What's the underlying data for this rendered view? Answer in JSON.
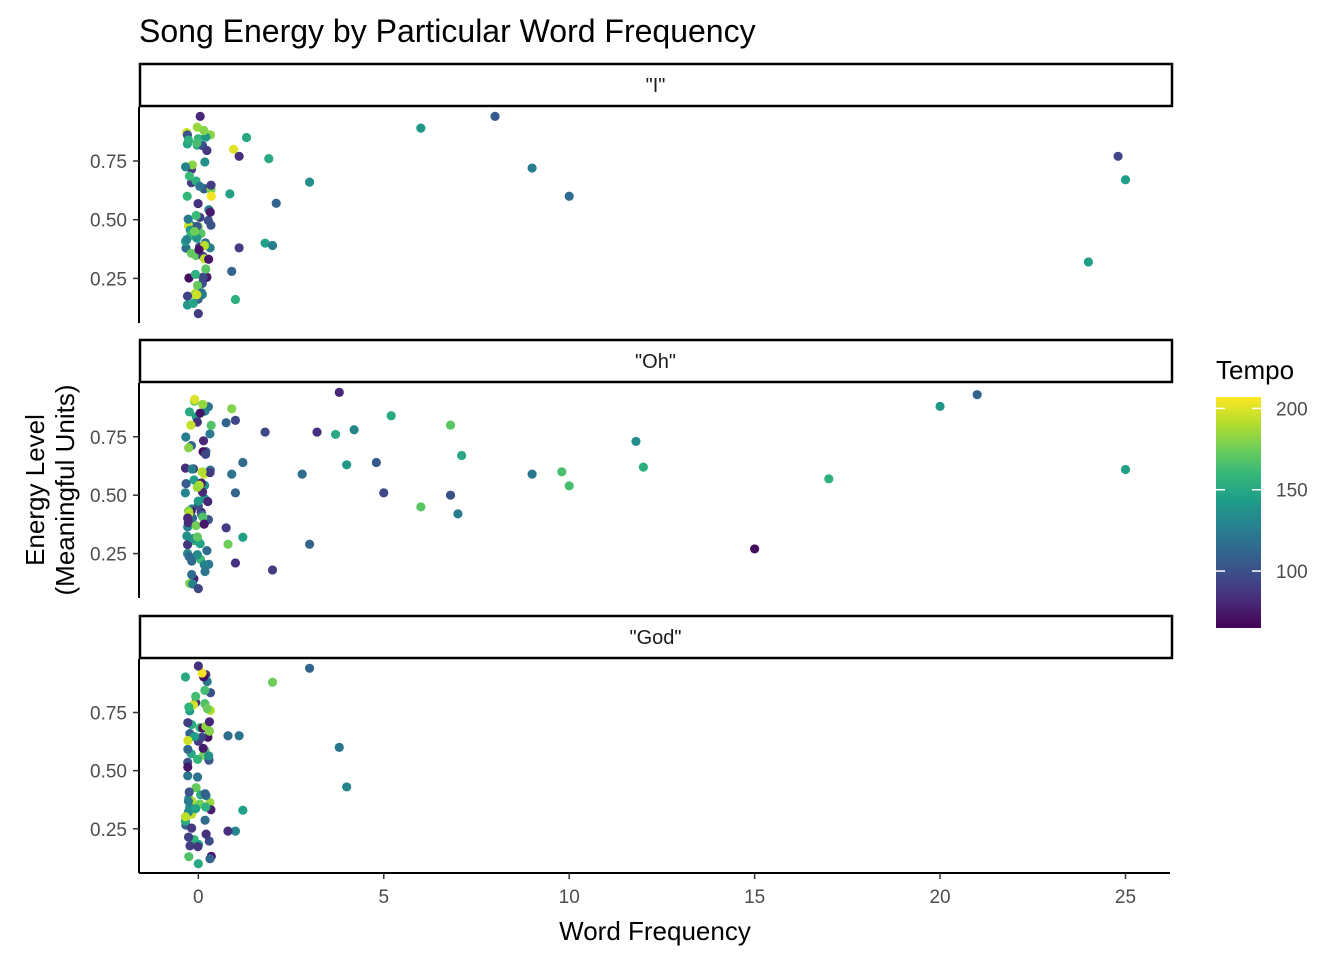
{
  "chart_data": {
    "type": "scatter",
    "title": "Song Energy by Particular Word Frequency",
    "xlabel": "Word Frequency",
    "ylabel_line1": "Energy Level",
    "ylabel_line2": "(Meaningful Units)",
    "xlim": [
      -1.6,
      26.2
    ],
    "ylim": [
      0.06,
      0.98
    ],
    "x_ticks": [
      0,
      5,
      10,
      15,
      20,
      25
    ],
    "x_tick_labels": [
      "0",
      "5",
      "10",
      "15",
      "20",
      "25"
    ],
    "y_ticks": [
      0.25,
      0.5,
      0.75
    ],
    "y_tick_labels": [
      "0.25",
      "0.50",
      "0.75"
    ],
    "grid": false,
    "legend": {
      "title": "Tempo",
      "position": "right",
      "range": [
        65,
        207
      ],
      "ticks": [
        100,
        150,
        200
      ],
      "tick_labels": [
        "100",
        "150",
        "200"
      ],
      "colors": [
        "#440154",
        "#482878",
        "#3e4a89",
        "#31688e",
        "#26828e",
        "#1f9e89",
        "#35b779",
        "#6ece58",
        "#b5de2b",
        "#fde725"
      ]
    },
    "panels": [
      {
        "label": "\"I\"",
        "points": [
          {
            "x": 6,
            "y": 0.89,
            "tempo": 140
          },
          {
            "x": 8,
            "y": 0.94,
            "tempo": 105
          },
          {
            "x": 9,
            "y": 0.72,
            "tempo": 125
          },
          {
            "x": 10,
            "y": 0.6,
            "tempo": 115
          },
          {
            "x": 24.8,
            "y": 0.77,
            "tempo": 95
          },
          {
            "x": 25,
            "y": 0.67,
            "tempo": 145
          },
          {
            "x": 24,
            "y": 0.32,
            "tempo": 145
          },
          {
            "x": 3,
            "y": 0.66,
            "tempo": 135
          },
          {
            "x": 2.1,
            "y": 0.57,
            "tempo": 110
          },
          {
            "x": 1.9,
            "y": 0.76,
            "tempo": 150
          },
          {
            "x": 1.3,
            "y": 0.85,
            "tempo": 150
          },
          {
            "x": 0.95,
            "y": 0.8,
            "tempo": 200
          },
          {
            "x": 1.1,
            "y": 0.77,
            "tempo": 85
          },
          {
            "x": 0.85,
            "y": 0.61,
            "tempo": 145
          },
          {
            "x": 1.1,
            "y": 0.38,
            "tempo": 90
          },
          {
            "x": 1.8,
            "y": 0.4,
            "tempo": 145
          },
          {
            "x": 2,
            "y": 0.39,
            "tempo": 125
          },
          {
            "x": 0.9,
            "y": 0.28,
            "tempo": 110
          },
          {
            "x": 1,
            "y": 0.16,
            "tempo": 155
          },
          {
            "x": 0.35,
            "y": 0.6,
            "tempo": 205
          },
          {
            "x": 0.15,
            "y": 0.88,
            "tempo": 180
          },
          {
            "x": 0.05,
            "y": 0.94,
            "tempo": 80
          },
          {
            "x": 0.0,
            "y": 0.1,
            "tempo": 90
          },
          {
            "x": 0.2,
            "y": 0.29,
            "tempo": 170
          },
          {
            "x": -0.1,
            "y": 0.45,
            "tempo": 175
          },
          {
            "x": -0.3,
            "y": 0.6,
            "tempo": 160
          }
        ]
      },
      {
        "label": "\"Oh\"",
        "points": [
          {
            "x": 3.8,
            "y": 0.94,
            "tempo": 80
          },
          {
            "x": 21,
            "y": 0.93,
            "tempo": 110
          },
          {
            "x": 20,
            "y": 0.88,
            "tempo": 140
          },
          {
            "x": 5.2,
            "y": 0.84,
            "tempo": 150
          },
          {
            "x": 6.8,
            "y": 0.8,
            "tempo": 170
          },
          {
            "x": 4.2,
            "y": 0.78,
            "tempo": 130
          },
          {
            "x": 3.7,
            "y": 0.76,
            "tempo": 150
          },
          {
            "x": 3.2,
            "y": 0.77,
            "tempo": 85
          },
          {
            "x": 1.8,
            "y": 0.77,
            "tempo": 95
          },
          {
            "x": 11.8,
            "y": 0.73,
            "tempo": 135
          },
          {
            "x": 7.1,
            "y": 0.67,
            "tempo": 150
          },
          {
            "x": 4.8,
            "y": 0.64,
            "tempo": 105
          },
          {
            "x": 4,
            "y": 0.63,
            "tempo": 140
          },
          {
            "x": 12,
            "y": 0.62,
            "tempo": 155
          },
          {
            "x": 2.8,
            "y": 0.59,
            "tempo": 115
          },
          {
            "x": 9,
            "y": 0.59,
            "tempo": 120
          },
          {
            "x": 9.8,
            "y": 0.6,
            "tempo": 165
          },
          {
            "x": 10,
            "y": 0.54,
            "tempo": 165
          },
          {
            "x": 17,
            "y": 0.57,
            "tempo": 155
          },
          {
            "x": 25,
            "y": 0.61,
            "tempo": 145
          },
          {
            "x": 5,
            "y": 0.51,
            "tempo": 95
          },
          {
            "x": 6.8,
            "y": 0.5,
            "tempo": 100
          },
          {
            "x": 6,
            "y": 0.45,
            "tempo": 170
          },
          {
            "x": 7,
            "y": 0.42,
            "tempo": 125
          },
          {
            "x": 15,
            "y": 0.27,
            "tempo": 70
          },
          {
            "x": 3,
            "y": 0.29,
            "tempo": 110
          },
          {
            "x": 2,
            "y": 0.18,
            "tempo": 90
          },
          {
            "x": 1,
            "y": 0.21,
            "tempo": 85
          },
          {
            "x": 1.2,
            "y": 0.32,
            "tempo": 145
          },
          {
            "x": 0.8,
            "y": 0.29,
            "tempo": 175
          },
          {
            "x": 0.75,
            "y": 0.36,
            "tempo": 90
          },
          {
            "x": 1,
            "y": 0.51,
            "tempo": 110
          },
          {
            "x": 1.2,
            "y": 0.64,
            "tempo": 115
          },
          {
            "x": 0.9,
            "y": 0.59,
            "tempo": 120
          },
          {
            "x": 0.9,
            "y": 0.87,
            "tempo": 180
          },
          {
            "x": 1,
            "y": 0.82,
            "tempo": 95
          },
          {
            "x": 0.75,
            "y": 0.81,
            "tempo": 110
          },
          {
            "x": -0.1,
            "y": 0.91,
            "tempo": 200
          },
          {
            "x": -0.2,
            "y": 0.8,
            "tempo": 195
          },
          {
            "x": 0.0,
            "y": 0.1,
            "tempo": 95
          },
          {
            "x": 0.1,
            "y": 0.6,
            "tempo": 190
          }
        ]
      },
      {
        "label": "\"God\"",
        "points": [
          {
            "x": 3,
            "y": 0.94,
            "tempo": 110
          },
          {
            "x": 2,
            "y": 0.88,
            "tempo": 175
          },
          {
            "x": 3.8,
            "y": 0.6,
            "tempo": 120
          },
          {
            "x": 4,
            "y": 0.43,
            "tempo": 130
          },
          {
            "x": 1.2,
            "y": 0.33,
            "tempo": 145
          },
          {
            "x": 1,
            "y": 0.24,
            "tempo": 130
          },
          {
            "x": 0.8,
            "y": 0.24,
            "tempo": 85
          },
          {
            "x": 0.8,
            "y": 0.65,
            "tempo": 115
          },
          {
            "x": 1.1,
            "y": 0.65,
            "tempo": 120
          },
          {
            "x": 0.1,
            "y": 0.92,
            "tempo": 205
          },
          {
            "x": 0.0,
            "y": 0.95,
            "tempo": 85
          },
          {
            "x": 0.3,
            "y": 0.67,
            "tempo": 180
          },
          {
            "x": 0.3,
            "y": 0.71,
            "tempo": 80
          },
          {
            "x": 0.0,
            "y": 0.1,
            "tempo": 150
          }
        ]
      }
    ]
  }
}
